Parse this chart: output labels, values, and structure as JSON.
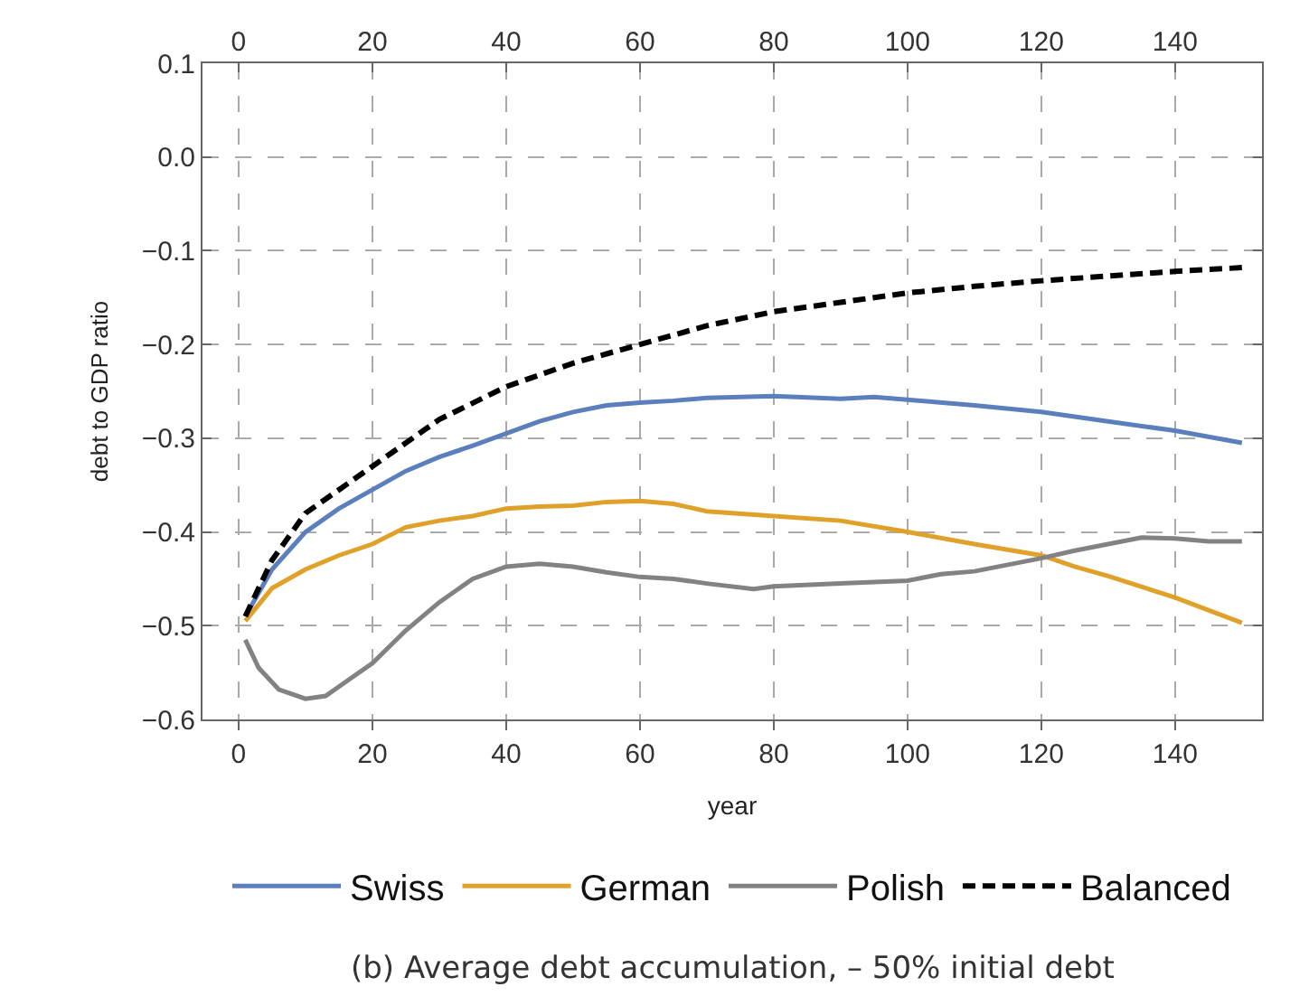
{
  "chart_data": {
    "type": "line",
    "xlabel": "year",
    "ylabel": "debt to GDP ratio",
    "xlim": [
      -5.4,
      153
    ],
    "xticks": [
      0,
      20,
      40,
      60,
      80,
      100,
      120,
      140
    ],
    "x2lim": [
      -5.4,
      153
    ],
    "x2ticks": [
      0,
      20,
      40,
      60,
      80,
      100,
      120,
      140
    ],
    "ylim": [
      -0.6,
      0.1
    ],
    "yticks": [
      {
        "value": -0.6,
        "label": "−0.6"
      },
      {
        "value": -0.5,
        "label": "−0.5"
      },
      {
        "value": -0.4,
        "label": "−0.4"
      },
      {
        "value": -0.3,
        "label": "−0.3"
      },
      {
        "value": -0.2,
        "label": "−0.2"
      },
      {
        "value": -0.1,
        "label": "−0.1"
      },
      {
        "value": 0,
        "label": "0.0"
      },
      {
        "value": 0.1,
        "label": "0.1"
      }
    ],
    "grid": true,
    "legend": "bottom",
    "marker": "none",
    "annotations": [
      "(b) Average debt accumulation, – 50% initial debt"
    ],
    "series": [
      {
        "name": "Swiss",
        "color": "#5b7fbd",
        "x": [
          1,
          5,
          10,
          15,
          20,
          25,
          30,
          35,
          40,
          45,
          50,
          55,
          60,
          65,
          70,
          80,
          90,
          95,
          100,
          110,
          120,
          130,
          140,
          150
        ],
        "values": [
          -0.49,
          -0.44,
          -0.4,
          -0.375,
          -0.355,
          -0.335,
          -0.32,
          -0.308,
          -0.295,
          -0.282,
          -0.272,
          -0.265,
          -0.262,
          -0.26,
          -0.257,
          -0.255,
          -0.258,
          -0.256,
          -0.259,
          -0.265,
          -0.272,
          -0.282,
          -0.292,
          -0.305
        ]
      },
      {
        "name": "German",
        "color": "#e0a12a",
        "x": [
          1,
          5,
          10,
          15,
          20,
          25,
          30,
          35,
          40,
          45,
          50,
          55,
          60,
          65,
          70,
          80,
          90,
          100,
          110,
          120,
          125,
          130,
          140,
          150
        ],
        "values": [
          -0.495,
          -0.46,
          -0.44,
          -0.425,
          -0.413,
          -0.395,
          -0.388,
          -0.383,
          -0.375,
          -0.373,
          -0.372,
          -0.368,
          -0.367,
          -0.37,
          -0.378,
          -0.383,
          -0.388,
          -0.4,
          -0.413,
          -0.425,
          -0.437,
          -0.447,
          -0.47,
          -0.497
        ]
      },
      {
        "name": "Polish",
        "color": "#828282",
        "x": [
          1,
          3,
          6,
          10,
          13,
          16,
          20,
          25,
          30,
          35,
          40,
          45,
          50,
          55,
          60,
          65,
          70,
          77,
          80,
          90,
          100,
          105,
          110,
          115,
          120,
          125,
          130,
          135,
          140,
          145,
          150
        ],
        "values": [
          -0.515,
          -0.545,
          -0.568,
          -0.578,
          -0.575,
          -0.56,
          -0.54,
          -0.505,
          -0.475,
          -0.45,
          -0.437,
          -0.434,
          -0.437,
          -0.443,
          -0.448,
          -0.45,
          -0.455,
          -0.461,
          -0.458,
          -0.455,
          -0.452,
          -0.445,
          -0.442,
          -0.435,
          -0.428,
          -0.42,
          -0.413,
          -0.406,
          -0.407,
          -0.41,
          -0.41
        ]
      },
      {
        "name": "Balanced",
        "color": "#000000",
        "line_style": "dashed",
        "x": [
          1,
          5,
          10,
          20,
          30,
          40,
          50,
          60,
          70,
          80,
          90,
          100,
          110,
          120,
          130,
          140,
          150
        ],
        "values": [
          -0.49,
          -0.43,
          -0.38,
          -0.33,
          -0.28,
          -0.245,
          -0.22,
          -0.2,
          -0.18,
          -0.165,
          -0.155,
          -0.145,
          -0.138,
          -0.132,
          -0.127,
          -0.122,
          -0.118
        ]
      }
    ]
  }
}
